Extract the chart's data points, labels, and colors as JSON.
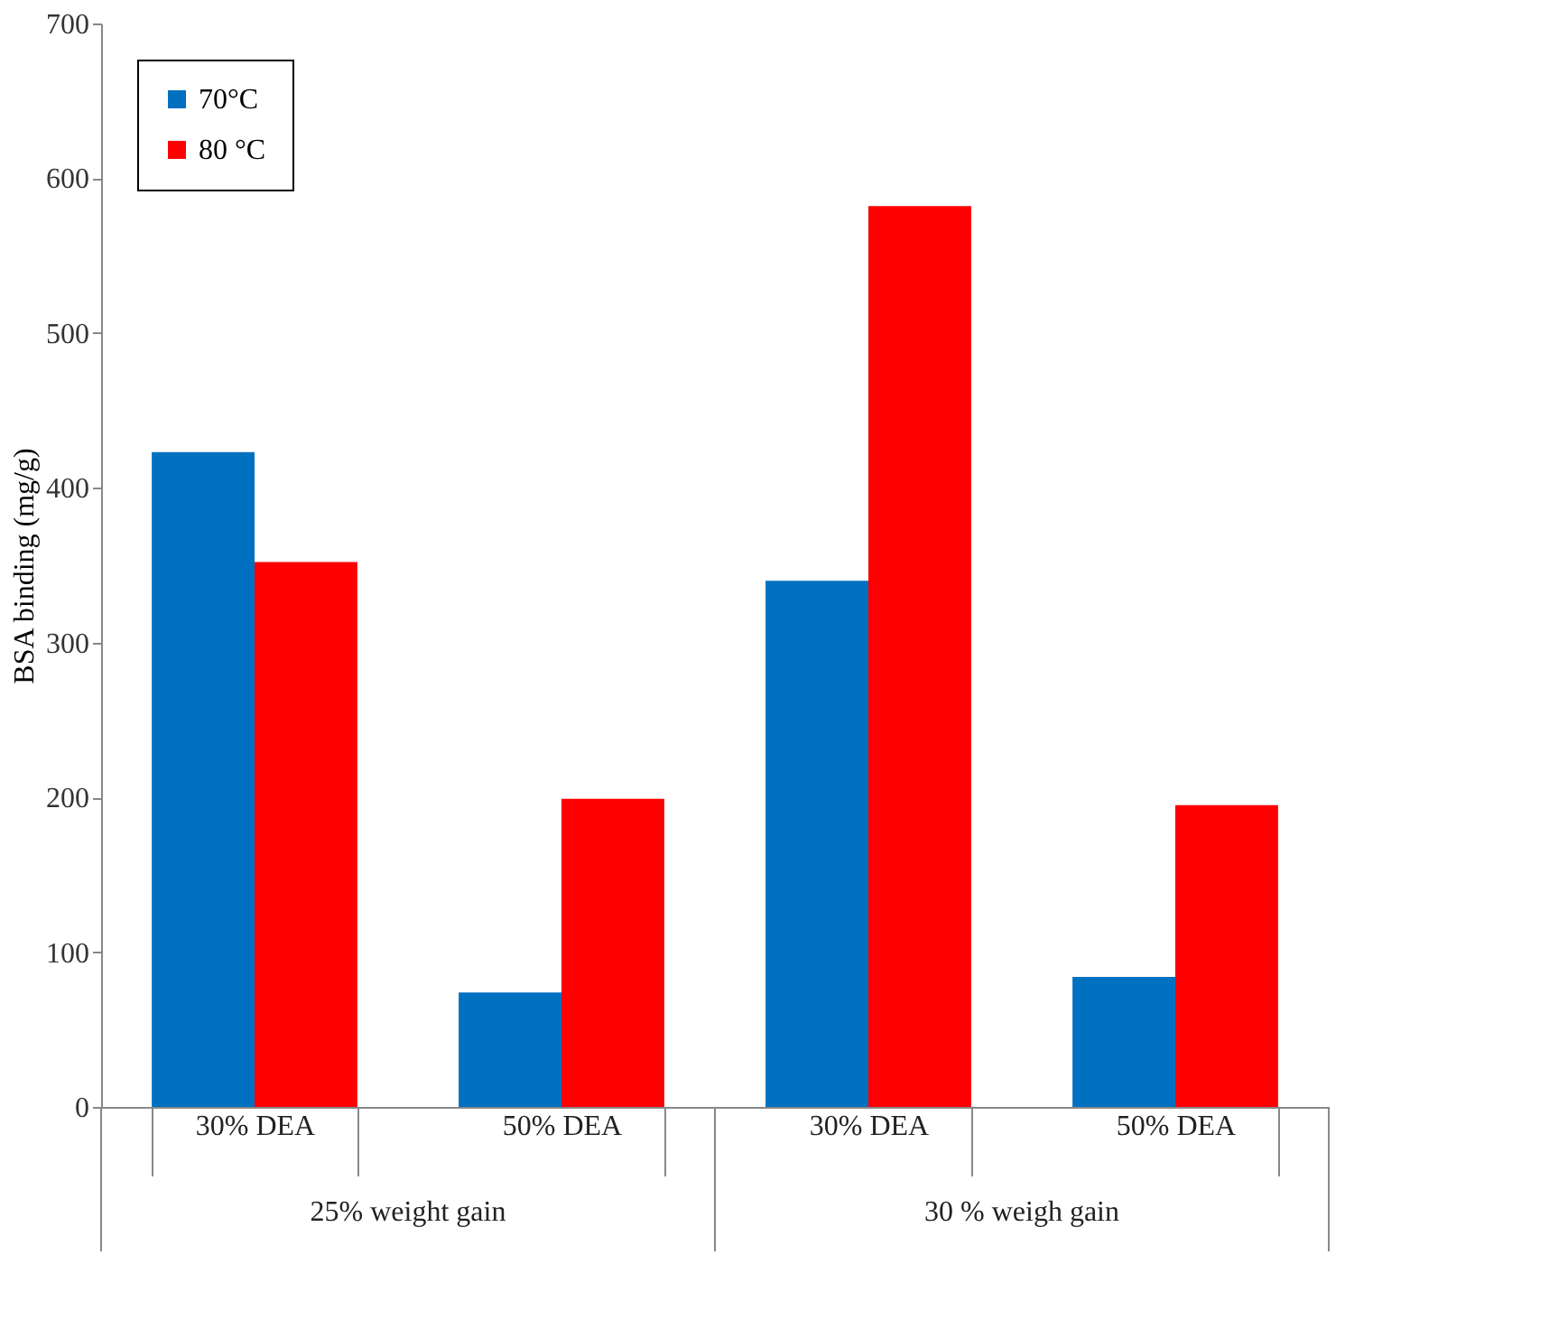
{
  "chart_data": {
    "type": "bar",
    "ylabel": "BSA binding (mg/g)",
    "categories": [
      "30% DEA",
      "50% DEA",
      "30% DEA",
      "50% DEA"
    ],
    "series": [
      {
        "name": "70°C",
        "color": "#0070c0",
        "values": [
          423,
          74,
          340,
          84
        ]
      },
      {
        "name": "80 °C",
        "color": "#ff0000",
        "values": [
          352,
          199,
          582,
          195
        ]
      }
    ],
    "ylim": [
      0,
      700
    ],
    "yticks": [
      0,
      100,
      200,
      300,
      400,
      500,
      600,
      700
    ],
    "grid": false,
    "legend": "top left",
    "annotations": [
      "25% weight gain",
      "30 % weigh gain"
    ]
  }
}
